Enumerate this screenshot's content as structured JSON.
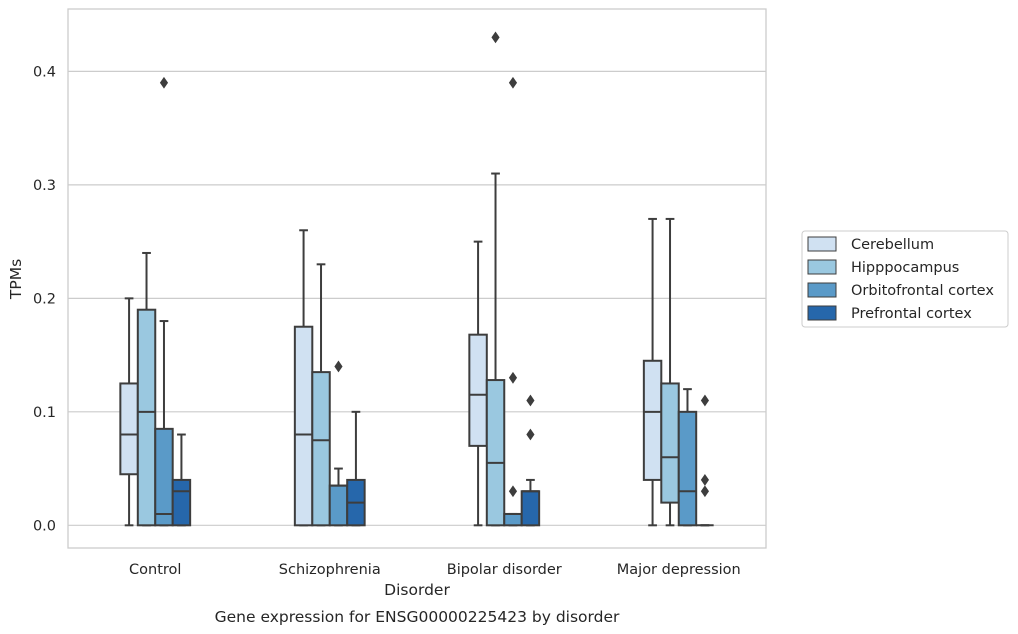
{
  "chart_data": {
    "type": "box",
    "title": "",
    "caption": "Gene expression for ENSG00000225423 by disorder",
    "xlabel": "Disorder",
    "ylabel": "TPMs",
    "ylim": [
      -0.02,
      0.455
    ],
    "yticks": [
      0.0,
      0.1,
      0.2,
      0.3,
      0.4
    ],
    "ytick_labels": [
      "0.0",
      "0.1",
      "0.2",
      "0.3",
      "0.4"
    ],
    "grid": "horizontal",
    "legend_position": "right",
    "categories": [
      "Control",
      "Schizophrenia",
      "Bipolar disorder",
      "Major depression"
    ],
    "series": [
      {
        "name": "Cerebellum",
        "color": "#d0e1f2",
        "boxes": [
          {
            "whislo": 0.0,
            "q1": 0.045,
            "med": 0.08,
            "q3": 0.125,
            "whishi": 0.2,
            "fliers": []
          },
          {
            "whislo": 0.0,
            "q1": 0.0,
            "med": 0.08,
            "q3": 0.175,
            "whishi": 0.26,
            "fliers": []
          },
          {
            "whislo": 0.0,
            "q1": 0.07,
            "med": 0.115,
            "q3": 0.168,
            "whishi": 0.25,
            "fliers": []
          },
          {
            "whislo": 0.0,
            "q1": 0.04,
            "med": 0.1,
            "q3": 0.145,
            "whishi": 0.27,
            "fliers": []
          }
        ]
      },
      {
        "name": "Hipppocampus",
        "color": "#9ac8e0",
        "boxes": [
          {
            "whislo": 0.0,
            "q1": 0.0,
            "med": 0.1,
            "q3": 0.19,
            "whishi": 0.24,
            "fliers": []
          },
          {
            "whislo": 0.0,
            "q1": 0.0,
            "med": 0.075,
            "q3": 0.135,
            "whishi": 0.23,
            "fliers": []
          },
          {
            "whislo": 0.0,
            "q1": 0.0,
            "med": 0.055,
            "q3": 0.128,
            "whishi": 0.31,
            "fliers": [
              0.43
            ]
          },
          {
            "whislo": 0.0,
            "q1": 0.02,
            "med": 0.06,
            "q3": 0.125,
            "whishi": 0.27,
            "fliers": []
          }
        ]
      },
      {
        "name": "Orbitofrontal cortex",
        "color": "#5a9ac8",
        "boxes": [
          {
            "whislo": 0.0,
            "q1": 0.0,
            "med": 0.01,
            "q3": 0.085,
            "whishi": 0.18,
            "fliers": [
              0.39
            ]
          },
          {
            "whislo": 0.0,
            "q1": 0.0,
            "med": 0.035,
            "q3": 0.035,
            "whishi": 0.05,
            "fliers": [
              0.14
            ]
          },
          {
            "whislo": 0.0,
            "q1": 0.0,
            "med": 0.01,
            "q3": 0.01,
            "whishi": 0.01,
            "fliers": [
              0.39,
              0.13,
              0.03
            ]
          },
          {
            "whislo": 0.0,
            "q1": 0.0,
            "med": 0.03,
            "q3": 0.1,
            "whishi": 0.12,
            "fliers": []
          }
        ]
      },
      {
        "name": "Prefrontal cortex",
        "color": "#2667ab",
        "boxes": [
          {
            "whislo": 0.0,
            "q1": 0.0,
            "med": 0.03,
            "q3": 0.04,
            "whishi": 0.08,
            "fliers": []
          },
          {
            "whislo": 0.0,
            "q1": 0.0,
            "med": 0.02,
            "q3": 0.04,
            "whishi": 0.1,
            "fliers": []
          },
          {
            "whislo": 0.0,
            "q1": 0.0,
            "med": 0.03,
            "q3": 0.03,
            "whishi": 0.04,
            "fliers": [
              0.11,
              0.08
            ]
          },
          {
            "whislo": 0.0,
            "q1": 0.0,
            "med": 0.0,
            "q3": 0.0,
            "whishi": 0.0,
            "fliers": [
              0.11,
              0.04,
              0.03
            ]
          }
        ]
      }
    ]
  }
}
